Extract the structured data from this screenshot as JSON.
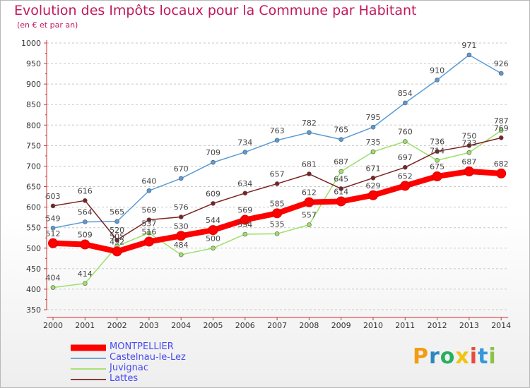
{
  "header": {
    "title": "Evolution des Impôts locaux pour la Commune par Habitant",
    "subtitle": "(en € et par an)"
  },
  "brand": {
    "letters": [
      "P",
      "r",
      "o",
      "x",
      "i",
      "t",
      "i"
    ],
    "colors": [
      "#f39c12",
      "#2e86c1",
      "#27ae60",
      "#f1c40f",
      "#e74c3c",
      "#3498db",
      "#8bc34a"
    ]
  },
  "chart_data": {
    "type": "line",
    "title": "Evolution des Impôts locaux pour la Commune par Habitant",
    "subtitle": "(en € et par an)",
    "xlabel": "",
    "ylabel": "",
    "ylim": [
      350,
      1000
    ],
    "yticks": [
      350,
      400,
      450,
      500,
      550,
      600,
      650,
      700,
      750,
      800,
      850,
      900,
      950,
      1000
    ],
    "grid": "horizontal dashed",
    "legend": "bottom-left",
    "categories": [
      "2000",
      "2001",
      "2002",
      "2003",
      "2004",
      "2005",
      "2006",
      "2007",
      "2008",
      "2009",
      "2010",
      "2011",
      "2012",
      "2013",
      "2014"
    ],
    "series": [
      {
        "name": "Castelnau-le-Lez",
        "color": "#5b9bd5",
        "text_color": "#4a7fb5",
        "values": [
          549,
          564,
          565,
          640,
          670,
          709,
          734,
          763,
          782,
          765,
          795,
          854,
          910,
          971,
          926
        ]
      },
      {
        "name": "Juvignac",
        "color": "#9ee06a",
        "text_color": "#5a9a2a",
        "values": [
          404,
          414,
          505,
          537,
          484,
          500,
          534,
          535,
          557,
          687,
          735,
          760,
          714,
          733,
          787
        ]
      },
      {
        "name": "Lattes",
        "color": "#7b2323",
        "text_color": "#6b1f1f",
        "values": [
          603,
          616,
          520,
          569,
          576,
          609,
          634,
          657,
          681,
          645,
          671,
          697,
          736,
          750,
          769
        ]
      },
      {
        "name": "MONTPELLIER",
        "color": "#ff0000",
        "text_color": "#ff0000",
        "values": [
          512,
          509,
          492,
          516,
          530,
          544,
          569,
          585,
          612,
          614,
          629,
          652,
          675,
          687,
          682
        ]
      }
    ],
    "draw_order": [
      "Castelnau-le-Lez",
      "Juvignac",
      "Lattes",
      "MONTPELLIER"
    ],
    "legend_order": [
      "MONTPELLIER",
      "Castelnau-le-Lez",
      "Juvignac",
      "Lattes"
    ]
  }
}
